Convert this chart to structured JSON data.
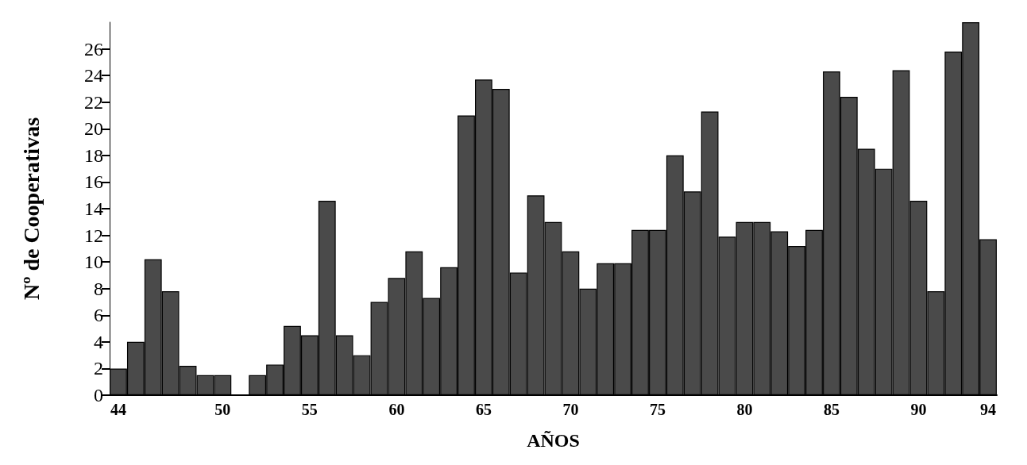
{
  "chart_data": {
    "type": "bar",
    "xlabel": "AÑOS",
    "ylabel": "Nº de Cooperativas",
    "x": [
      44,
      45,
      46,
      47,
      48,
      49,
      50,
      51,
      52,
      53,
      54,
      55,
      56,
      57,
      58,
      59,
      60,
      61,
      62,
      63,
      64,
      65,
      66,
      67,
      68,
      69,
      70,
      71,
      72,
      73,
      74,
      75,
      76,
      77,
      78,
      79,
      80,
      81,
      82,
      83,
      84,
      85,
      86,
      87,
      88,
      89,
      90,
      91,
      92,
      93,
      94
    ],
    "values": [
      2,
      4,
      10.2,
      7.8,
      2.2,
      1.5,
      1.5,
      null,
      1.5,
      2.3,
      5.2,
      4.5,
      14.6,
      4.5,
      3,
      7,
      8.8,
      10.8,
      7.3,
      9.6,
      21,
      23.7,
      23,
      9.2,
      15,
      13,
      10.8,
      8,
      9.9,
      9.9,
      12.4,
      12.4,
      18,
      15.3,
      21.3,
      11.9,
      13,
      13,
      12.3,
      11.2,
      12.4,
      24.3,
      22.4,
      18.5,
      17,
      24.4,
      14.6,
      7.8,
      25.8,
      28,
      11.7
    ],
    "color": "#4a4a4a",
    "xlim": [
      43.5,
      94.5
    ],
    "xticks": [
      44,
      50,
      55,
      60,
      65,
      70,
      75,
      80,
      85,
      90,
      94
    ],
    "ylim": [
      0,
      28
    ],
    "yticks": [
      0,
      2,
      4,
      6,
      8,
      10,
      12,
      14,
      16,
      18,
      20,
      22,
      24,
      26
    ],
    "grid": false
  }
}
